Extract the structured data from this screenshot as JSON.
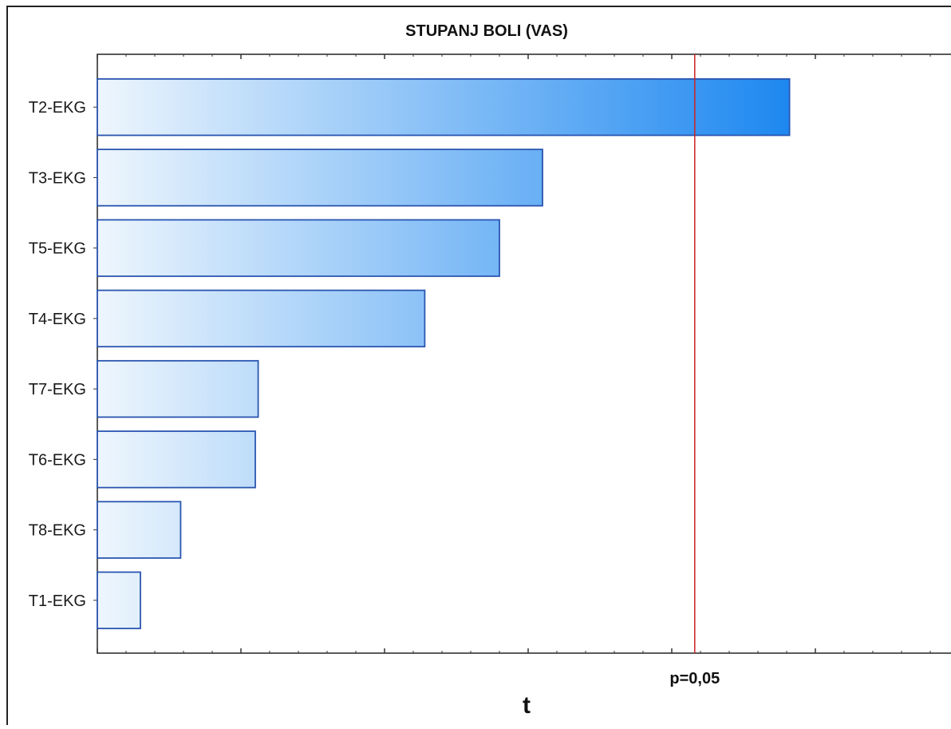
{
  "chart_data": {
    "type": "bar",
    "orientation": "horizontal",
    "title": "STUPANJ BOLI (VAS)",
    "xlabel": "t",
    "ylabel": "",
    "categories": [
      "T2-EKG",
      "T3-EKG",
      "T5-EKG",
      "T4-EKG",
      "T7-EKG",
      "T6-EKG",
      "T8-EKG",
      "T1-EKG"
    ],
    "values": [
      2.41,
      1.55,
      1.4,
      1.14,
      0.56,
      0.55,
      0.29,
      0.15
    ],
    "xlim": [
      0,
      3.0
    ],
    "grid": false,
    "reference_line": {
      "value": 2.08,
      "label": "p=0,05",
      "color": "#cc2222"
    },
    "bar_color": "#1e88f0"
  }
}
